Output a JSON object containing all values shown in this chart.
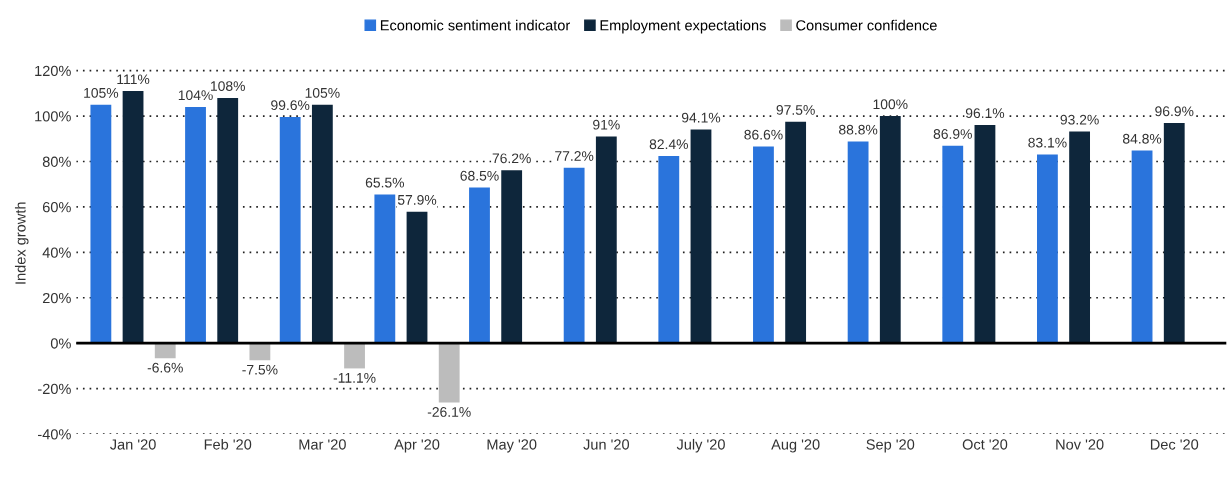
{
  "chart_data": {
    "type": "bar",
    "ylabel": "Index growth",
    "categories": [
      "Jan '20",
      "Feb '20",
      "Mar '20",
      "Apr '20",
      "May '20",
      "Jun '20",
      "July '20",
      "Aug '20",
      "Sep '20",
      "Oct '20",
      "Nov '20",
      "Dec '20"
    ],
    "series": [
      {
        "name": "Economic sentiment indicator",
        "color": "#2a74dc",
        "values": [
          105,
          104,
          99.6,
          65.5,
          68.5,
          77.2,
          82.4,
          86.6,
          88.8,
          86.9,
          83.1,
          84.8
        ],
        "value_labels": [
          "105%",
          "104%",
          "99.6%",
          "65.5%",
          "68.5%",
          "77.2%",
          "82.4%",
          "86.6%",
          "88.8%",
          "86.9%",
          "83.1%",
          "84.8%"
        ]
      },
      {
        "name": "Employment expectations",
        "color": "#0e263b",
        "values": [
          111,
          108,
          105,
          57.9,
          76.2,
          91,
          94.1,
          97.5,
          100,
          96.1,
          93.2,
          96.9
        ],
        "value_labels": [
          "111%",
          "108%",
          "105%",
          "57.9%",
          "76.2%",
          "91%",
          "94.1%",
          "97.5%",
          "100%",
          "96.1%",
          "93.2%",
          "96.9%"
        ]
      },
      {
        "name": "Consumer confidence",
        "color": "#bcbcbc",
        "values": [
          -6.6,
          -7.5,
          -11.1,
          -26.1,
          null,
          null,
          null,
          null,
          null,
          null,
          null,
          null
        ],
        "value_labels": [
          "-6.6%",
          "-7.5%",
          "-11.1%",
          "-26.1%",
          null,
          null,
          null,
          null,
          null,
          null,
          null,
          null
        ]
      }
    ],
    "ylim": [
      -40,
      120
    ],
    "yticks": [
      {
        "value": -40,
        "label": "-40%"
      },
      {
        "value": -20,
        "label": "-20%"
      },
      {
        "value": 0,
        "label": "0%"
      },
      {
        "value": 20,
        "label": "20%"
      },
      {
        "value": 40,
        "label": "40%"
      },
      {
        "value": 60,
        "label": "60%"
      },
      {
        "value": 80,
        "label": "80%"
      },
      {
        "value": 100,
        "label": "100%"
      },
      {
        "value": 120,
        "label": "120%"
      }
    ],
    "grid": "y",
    "legend": "top"
  }
}
